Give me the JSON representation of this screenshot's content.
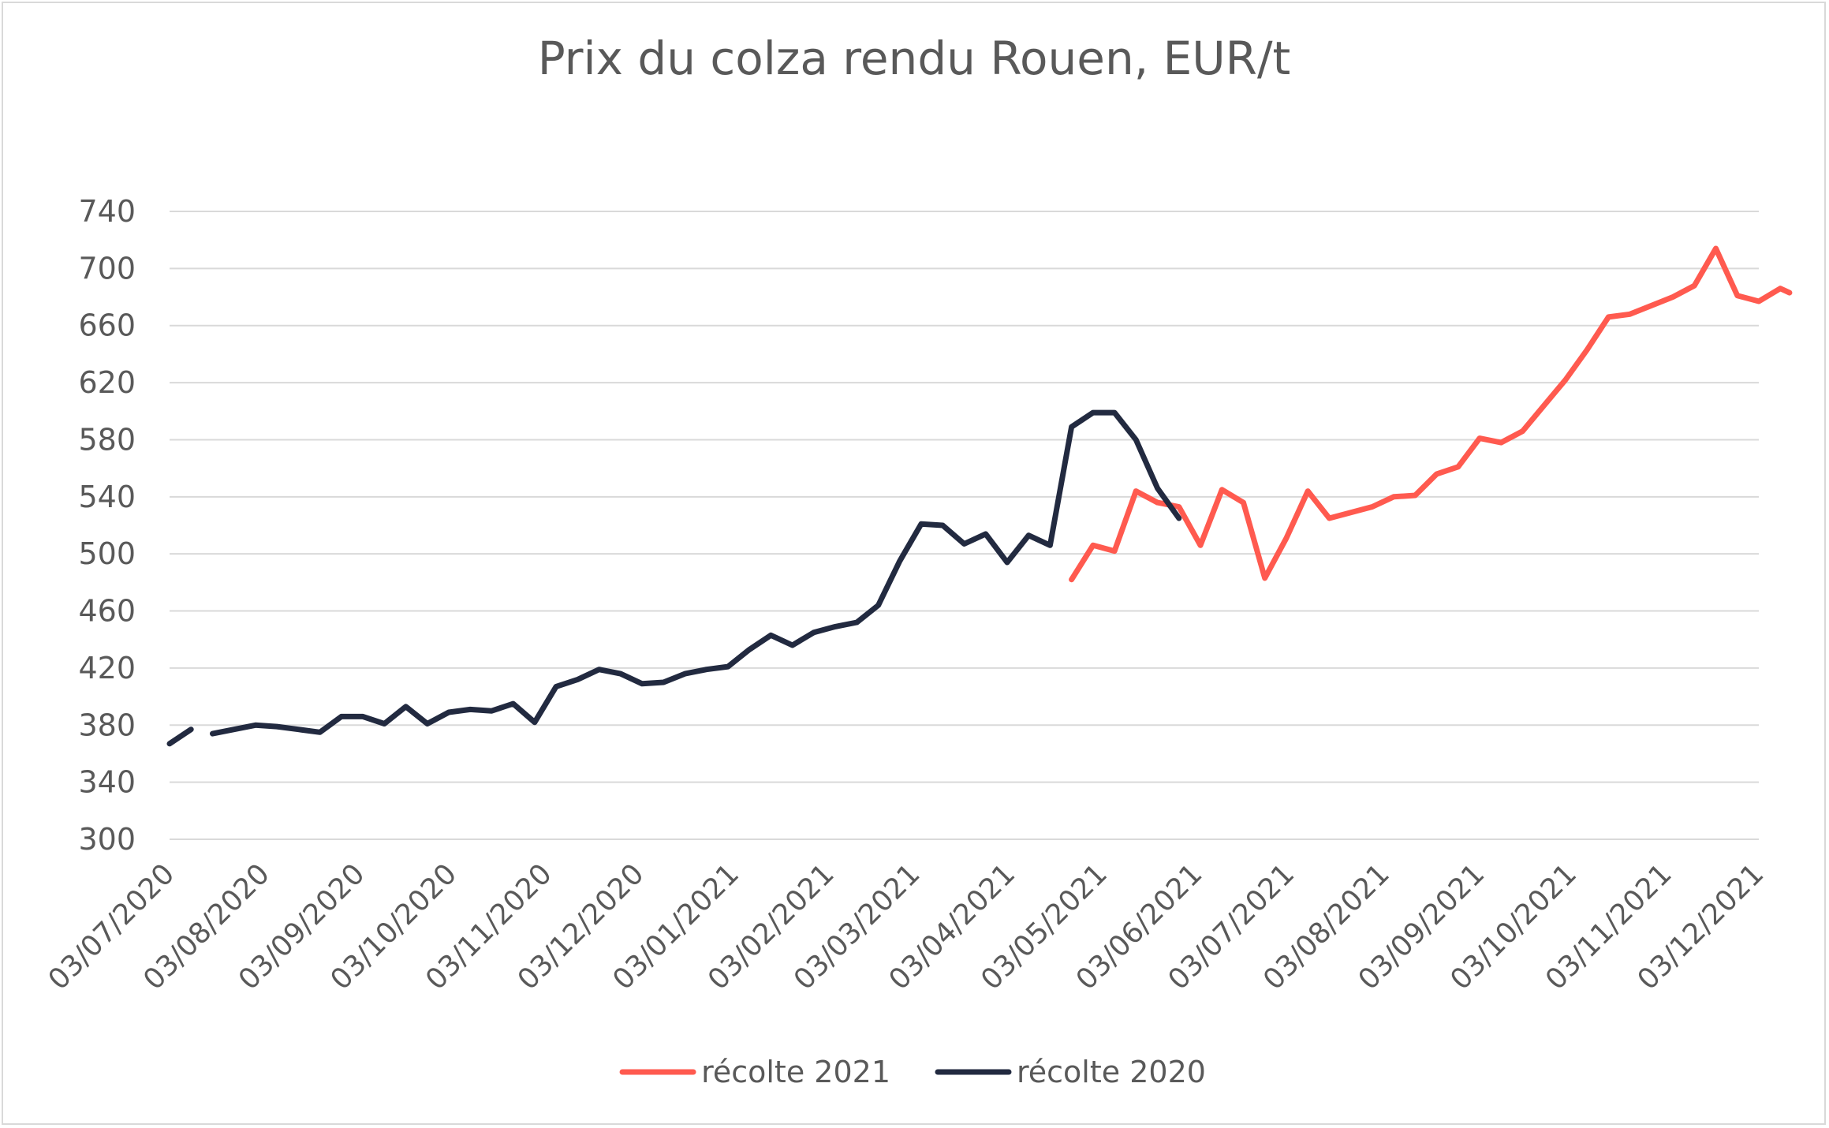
{
  "chart_data": {
    "type": "line",
    "title": "Prix du colza rendu Rouen, EUR/t",
    "xlabel": "",
    "ylabel": "",
    "ylim": [
      300,
      740
    ],
    "yticks": [
      300,
      340,
      380,
      420,
      460,
      500,
      540,
      580,
      620,
      660,
      700,
      740
    ],
    "xlim": [
      "2020-07-03",
      "2021-12-03"
    ],
    "xtick_labels": [
      "03/07/2020",
      "03/08/2020",
      "03/09/2020",
      "03/10/2020",
      "03/11/2020",
      "03/12/2020",
      "03/01/2021",
      "03/02/2021",
      "03/03/2021",
      "03/04/2021",
      "03/05/2021",
      "03/06/2021",
      "03/07/2021",
      "03/08/2021",
      "03/09/2021",
      "03/10/2021",
      "03/11/2021",
      "03/12/2021"
    ],
    "grid": true,
    "legend_position": "bottom",
    "series": [
      {
        "name": "récolte 2021",
        "color": "#ff5a4f",
        "points": [
          [
            "2021-04-23",
            482
          ],
          [
            "2021-04-30",
            506
          ],
          [
            "2021-05-07",
            502
          ],
          [
            "2021-05-14",
            544
          ],
          [
            "2021-05-21",
            536
          ],
          [
            "2021-05-28",
            533
          ],
          [
            "2021-06-04",
            506
          ],
          [
            "2021-06-11",
            545
          ],
          [
            "2021-06-18",
            536
          ],
          [
            "2021-06-25",
            483
          ],
          [
            "2021-07-02",
            511
          ],
          [
            "2021-07-09",
            544
          ],
          [
            "2021-07-16",
            525
          ],
          [
            "2021-07-23",
            529
          ],
          [
            "2021-07-30",
            533
          ],
          [
            "2021-08-06",
            540
          ],
          [
            "2021-08-13",
            541
          ],
          [
            "2021-08-20",
            556
          ],
          [
            "2021-08-27",
            561
          ],
          [
            "2021-09-03",
            581
          ],
          [
            "2021-09-10",
            578
          ],
          [
            "2021-09-17",
            586
          ],
          [
            "2021-09-24",
            604
          ],
          [
            "2021-10-01",
            622
          ],
          [
            "2021-10-08",
            643
          ],
          [
            "2021-10-15",
            666
          ],
          [
            "2021-10-22",
            668
          ],
          [
            "2021-10-29",
            674
          ],
          [
            "2021-11-05",
            680
          ],
          [
            "2021-11-12",
            688
          ],
          [
            "2021-11-19",
            714
          ],
          [
            "2021-11-26",
            681
          ],
          [
            "2021-12-03",
            677
          ],
          [
            "2021-12-10",
            686
          ],
          [
            "2021-12-13",
            683
          ]
        ]
      },
      {
        "name": "récolte 2020",
        "color": "#222a40",
        "points": [
          [
            "2020-07-03",
            367
          ],
          [
            "2020-07-10",
            377
          ],
          null,
          [
            "2020-07-17",
            374
          ],
          [
            "2020-07-24",
            377
          ],
          [
            "2020-07-31",
            380
          ],
          [
            "2020-08-07",
            379
          ],
          [
            "2020-08-14",
            377
          ],
          [
            "2020-08-21",
            375
          ],
          [
            "2020-08-28",
            386
          ],
          [
            "2020-09-04",
            386
          ],
          [
            "2020-09-11",
            381
          ],
          [
            "2020-09-18",
            393
          ],
          [
            "2020-09-25",
            381
          ],
          [
            "2020-10-02",
            389
          ],
          [
            "2020-10-09",
            391
          ],
          [
            "2020-10-16",
            390
          ],
          [
            "2020-10-23",
            395
          ],
          [
            "2020-10-30",
            382
          ],
          [
            "2020-11-06",
            407
          ],
          [
            "2020-11-13",
            412
          ],
          [
            "2020-11-20",
            419
          ],
          [
            "2020-11-27",
            416
          ],
          [
            "2020-12-04",
            409
          ],
          [
            "2020-12-11",
            410
          ],
          [
            "2020-12-18",
            416
          ],
          [
            "2020-12-25",
            419
          ],
          [
            "2021-01-01",
            421
          ],
          [
            "2021-01-08",
            433
          ],
          [
            "2021-01-15",
            443
          ],
          [
            "2021-01-22",
            436
          ],
          [
            "2021-01-29",
            445
          ],
          [
            "2021-02-05",
            449
          ],
          [
            "2021-02-12",
            452
          ],
          [
            "2021-02-19",
            464
          ],
          [
            "2021-02-26",
            495
          ],
          [
            "2021-03-05",
            521
          ],
          [
            "2021-03-12",
            520
          ],
          [
            "2021-03-19",
            507
          ],
          [
            "2021-03-26",
            514
          ],
          [
            "2021-04-02",
            494
          ],
          [
            "2021-04-09",
            513
          ],
          [
            "2021-04-16",
            506
          ],
          [
            "2021-04-23",
            589
          ],
          [
            "2021-04-30",
            599
          ],
          [
            "2021-05-07",
            599
          ],
          [
            "2021-05-14",
            580
          ],
          [
            "2021-05-21",
            546
          ],
          [
            "2021-05-28",
            525
          ]
        ]
      }
    ]
  }
}
